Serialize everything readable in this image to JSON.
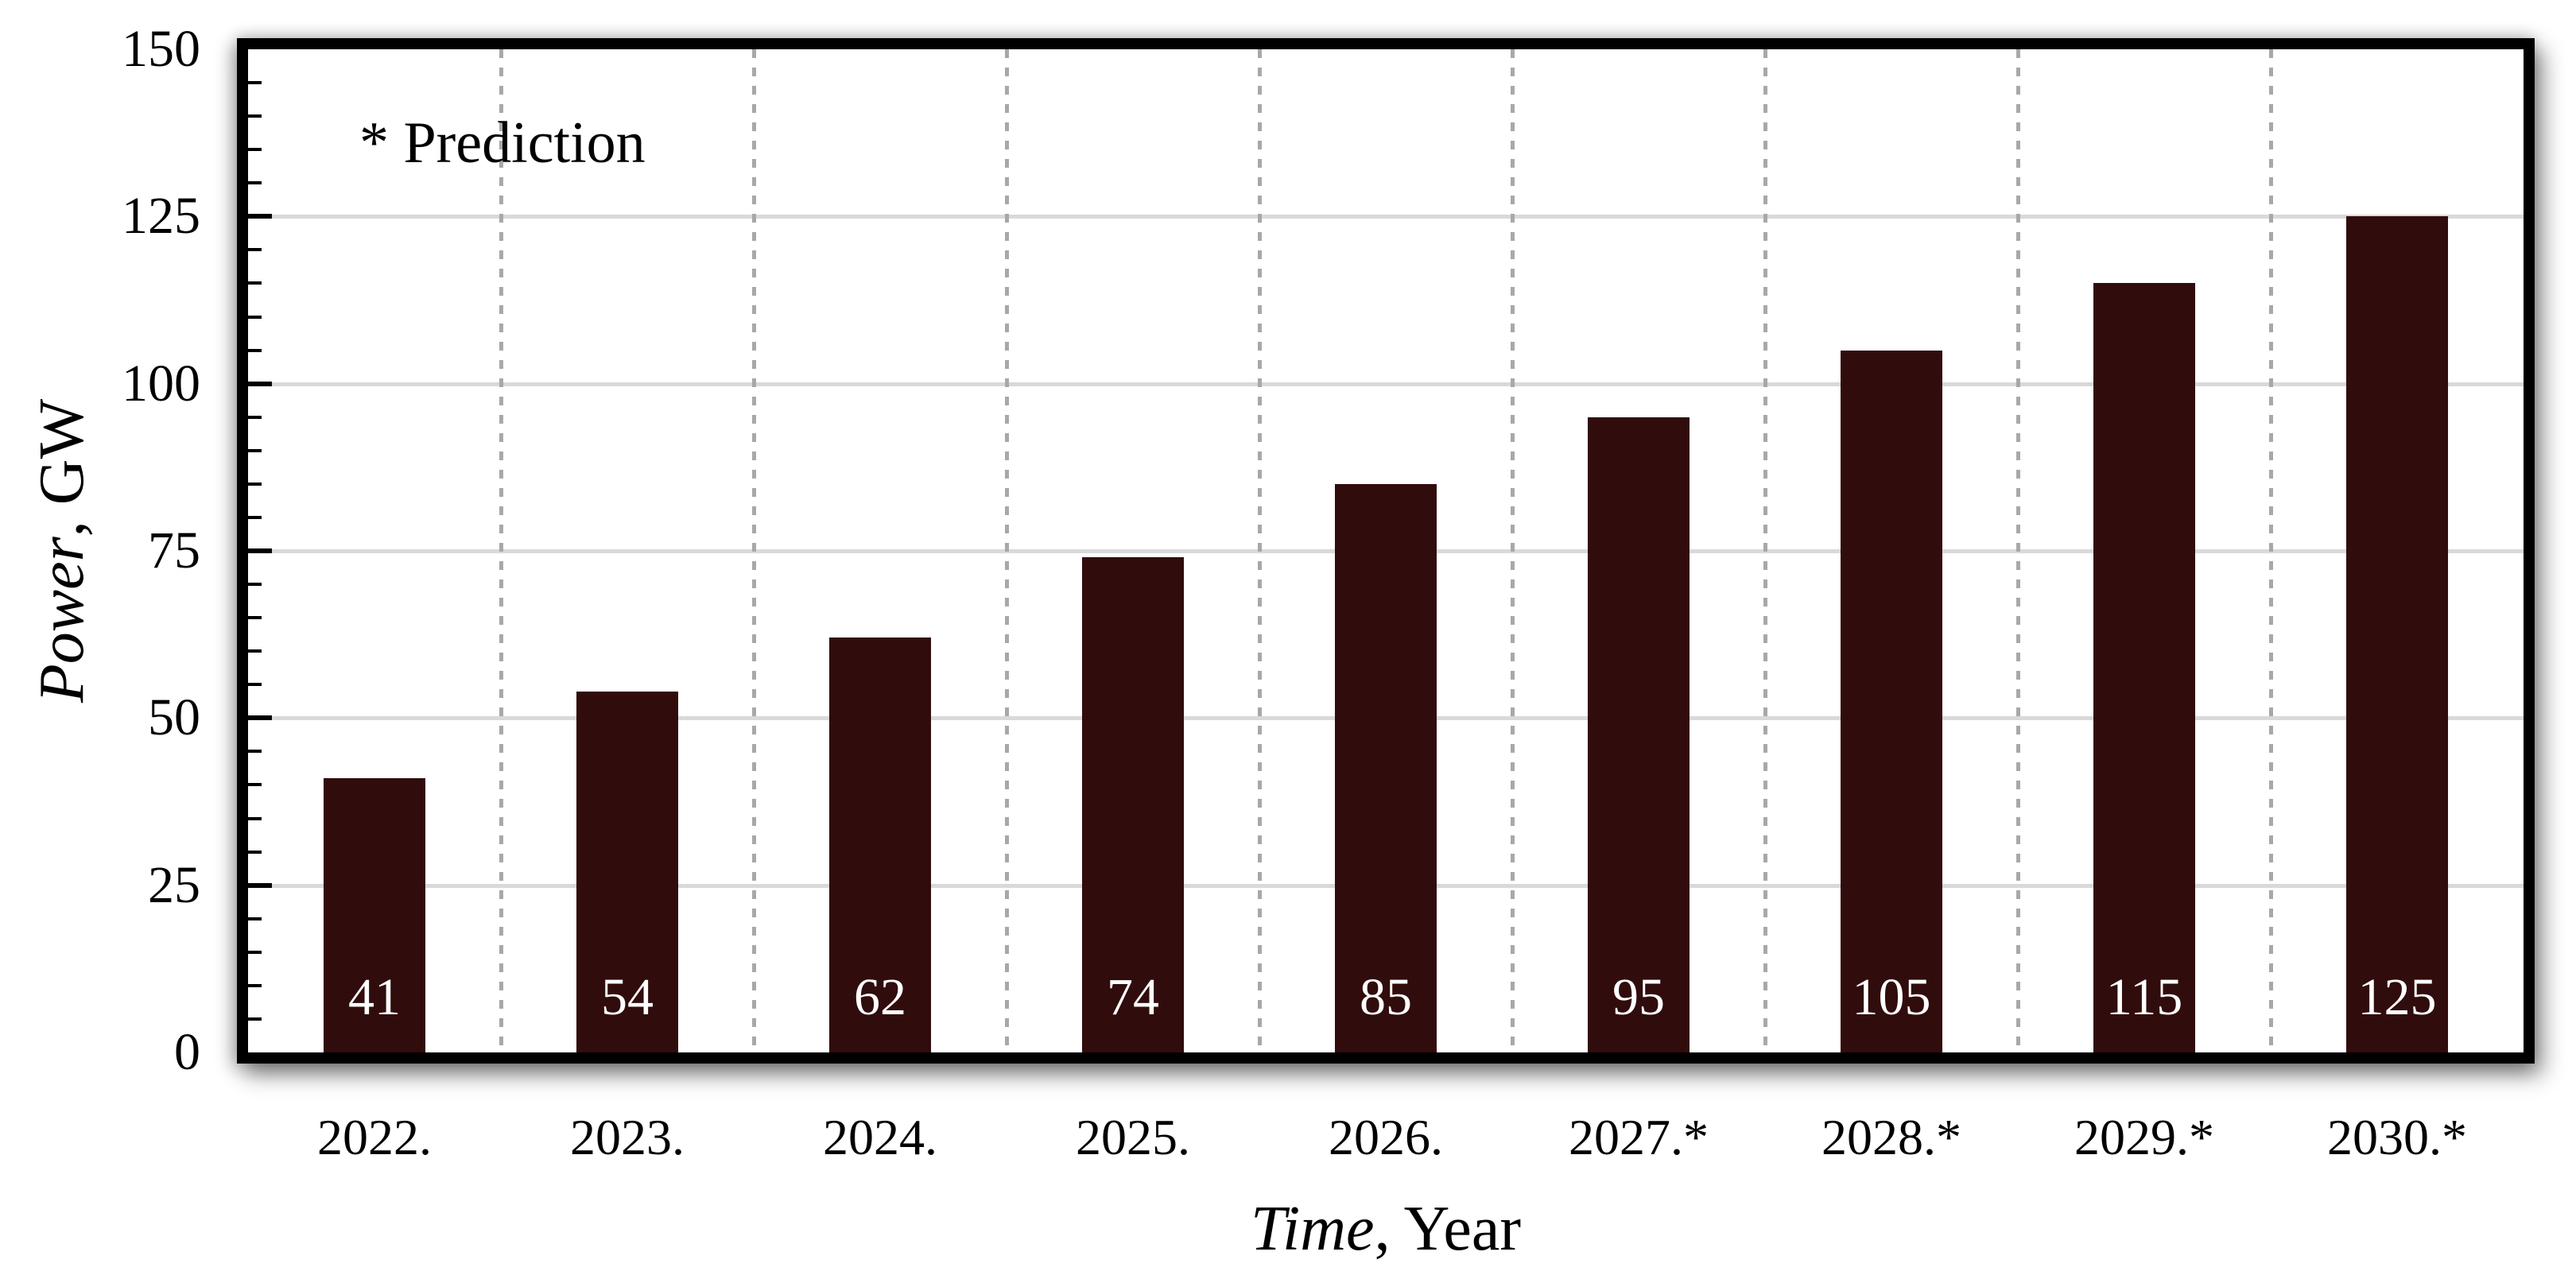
{
  "chart_data": {
    "type": "bar",
    "categories": [
      "2022.",
      "2023.",
      "2024.",
      "2025.",
      "2026.",
      "2027.*",
      "2028.*",
      "2029.*",
      "2030.*"
    ],
    "values": [
      41,
      54,
      62,
      74,
      85,
      95,
      105,
      115,
      125
    ],
    "bar_value_labels": [
      "41",
      "54",
      "62",
      "74",
      "85",
      "95",
      "105",
      "115",
      "125"
    ],
    "title": "",
    "xlabel": "Time, Year",
    "xlabel_italic": "Time",
    "xlabel_rest": ", Year",
    "ylabel": "Power, GW",
    "ylabel_italic": "Power",
    "ylabel_rest": ", GW",
    "ylim": [
      0,
      150
    ],
    "ytick_step": 25,
    "ytick_labels": [
      "0",
      "25",
      "50",
      "75",
      "100",
      "125",
      "150"
    ],
    "minor_tick_step": 5,
    "annotation": "* Prediction",
    "grid": "horizontal major gridlines on; dashed vertical separators between categories",
    "legend": "none",
    "colors": {
      "bar_fill": "#310C0D",
      "bar_value_text": "#FFFFFF",
      "gridline": "#D9D9D9",
      "category_separator": "#A8A8A8",
      "frame": "#000000",
      "text": "#000000"
    }
  }
}
